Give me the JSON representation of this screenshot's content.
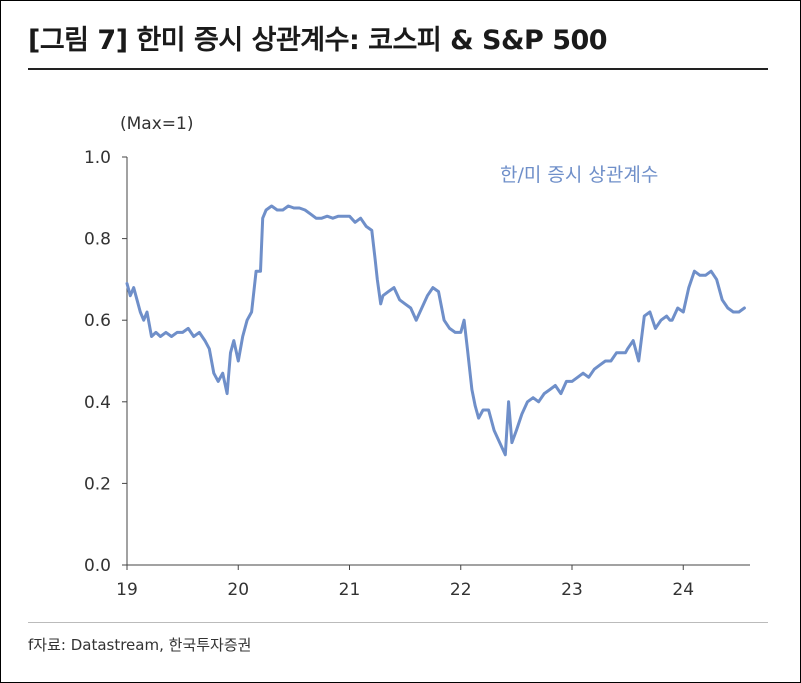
{
  "title": "[그림 7] 한미 증시 상관계수: 코스피 & S&P 500",
  "unit_label": "(Max=1)",
  "source": "f자료: Datastream, 한국투자증권",
  "colors": {
    "line": "#6f8fc9",
    "axis": "#444444",
    "text": "#333333"
  },
  "chart_data": {
    "type": "line",
    "title": "[그림 7] 한미 증시 상관계수: 코스피 & S&P 500",
    "xlabel": "",
    "ylabel": "(Max=1)",
    "xlim": [
      2019.0,
      2024.6
    ],
    "ylim": [
      0.0,
      1.0
    ],
    "x_ticks": [
      {
        "value": 2019,
        "label": "19"
      },
      {
        "value": 2020,
        "label": "20"
      },
      {
        "value": 2021,
        "label": "21"
      },
      {
        "value": 2022,
        "label": "22"
      },
      {
        "value": 2023,
        "label": "23"
      },
      {
        "value": 2024,
        "label": "24"
      }
    ],
    "y_ticks": [
      {
        "value": 0.0,
        "label": "0.0"
      },
      {
        "value": 0.2,
        "label": "0.2"
      },
      {
        "value": 0.4,
        "label": "0.4"
      },
      {
        "value": 0.6,
        "label": "0.6"
      },
      {
        "value": 0.8,
        "label": "0.8"
      },
      {
        "value": 1.0,
        "label": "1.0"
      }
    ],
    "grid": false,
    "legend": "top-right",
    "series": [
      {
        "name": "한/미 증시 상관계수",
        "x": [
          2019.0,
          2019.03,
          2019.06,
          2019.09,
          2019.12,
          2019.15,
          2019.18,
          2019.22,
          2019.26,
          2019.3,
          2019.35,
          2019.4,
          2019.45,
          2019.5,
          2019.55,
          2019.6,
          2019.65,
          2019.7,
          2019.74,
          2019.78,
          2019.82,
          2019.86,
          2019.9,
          2019.93,
          2019.96,
          2020.0,
          2020.04,
          2020.08,
          2020.12,
          2020.16,
          2020.2,
          2020.22,
          2020.25,
          2020.3,
          2020.35,
          2020.4,
          2020.45,
          2020.5,
          2020.55,
          2020.6,
          2020.65,
          2020.7,
          2020.75,
          2020.8,
          2020.85,
          2020.9,
          2020.95,
          2021.0,
          2021.05,
          2021.1,
          2021.15,
          2021.2,
          2021.23,
          2021.25,
          2021.28,
          2021.3,
          2021.35,
          2021.4,
          2021.45,
          2021.5,
          2021.55,
          2021.6,
          2021.65,
          2021.7,
          2021.75,
          2021.8,
          2021.85,
          2021.9,
          2021.95,
          2022.0,
          2022.03,
          2022.06,
          2022.1,
          2022.13,
          2022.16,
          2022.2,
          2022.25,
          2022.3,
          2022.35,
          2022.4,
          2022.43,
          2022.46,
          2022.5,
          2022.55,
          2022.6,
          2022.65,
          2022.7,
          2022.75,
          2022.8,
          2022.85,
          2022.9,
          2022.95,
          2023.0,
          2023.05,
          2023.1,
          2023.15,
          2023.2,
          2023.25,
          2023.3,
          2023.35,
          2023.4,
          2023.45,
          2023.48,
          2023.5,
          2023.55,
          2023.6,
          2023.65,
          2023.7,
          2023.75,
          2023.8,
          2023.85,
          2023.88,
          2023.9,
          2023.95,
          2024.0,
          2024.05,
          2024.1,
          2024.15,
          2024.2,
          2024.25,
          2024.3,
          2024.35,
          2024.4,
          2024.45,
          2024.5,
          2024.55
        ],
        "y": [
          0.69,
          0.66,
          0.68,
          0.65,
          0.62,
          0.6,
          0.62,
          0.56,
          0.57,
          0.56,
          0.57,
          0.56,
          0.57,
          0.57,
          0.58,
          0.56,
          0.57,
          0.55,
          0.53,
          0.47,
          0.45,
          0.47,
          0.42,
          0.52,
          0.55,
          0.5,
          0.56,
          0.6,
          0.62,
          0.72,
          0.72,
          0.85,
          0.87,
          0.88,
          0.87,
          0.87,
          0.88,
          0.875,
          0.875,
          0.87,
          0.86,
          0.85,
          0.85,
          0.855,
          0.85,
          0.855,
          0.855,
          0.855,
          0.84,
          0.85,
          0.83,
          0.82,
          0.75,
          0.7,
          0.64,
          0.66,
          0.67,
          0.68,
          0.65,
          0.64,
          0.63,
          0.6,
          0.63,
          0.66,
          0.68,
          0.67,
          0.6,
          0.58,
          0.57,
          0.57,
          0.6,
          0.53,
          0.43,
          0.39,
          0.36,
          0.38,
          0.38,
          0.33,
          0.3,
          0.27,
          0.4,
          0.3,
          0.33,
          0.37,
          0.4,
          0.41,
          0.4,
          0.42,
          0.43,
          0.44,
          0.42,
          0.45,
          0.45,
          0.46,
          0.47,
          0.46,
          0.48,
          0.49,
          0.5,
          0.5,
          0.52,
          0.52,
          0.52,
          0.53,
          0.55,
          0.5,
          0.61,
          0.62,
          0.58,
          0.6,
          0.61,
          0.6,
          0.6,
          0.63,
          0.62,
          0.68,
          0.72,
          0.71,
          0.71,
          0.72,
          0.7,
          0.65,
          0.63,
          0.62,
          0.62,
          0.63
        ]
      }
    ]
  }
}
